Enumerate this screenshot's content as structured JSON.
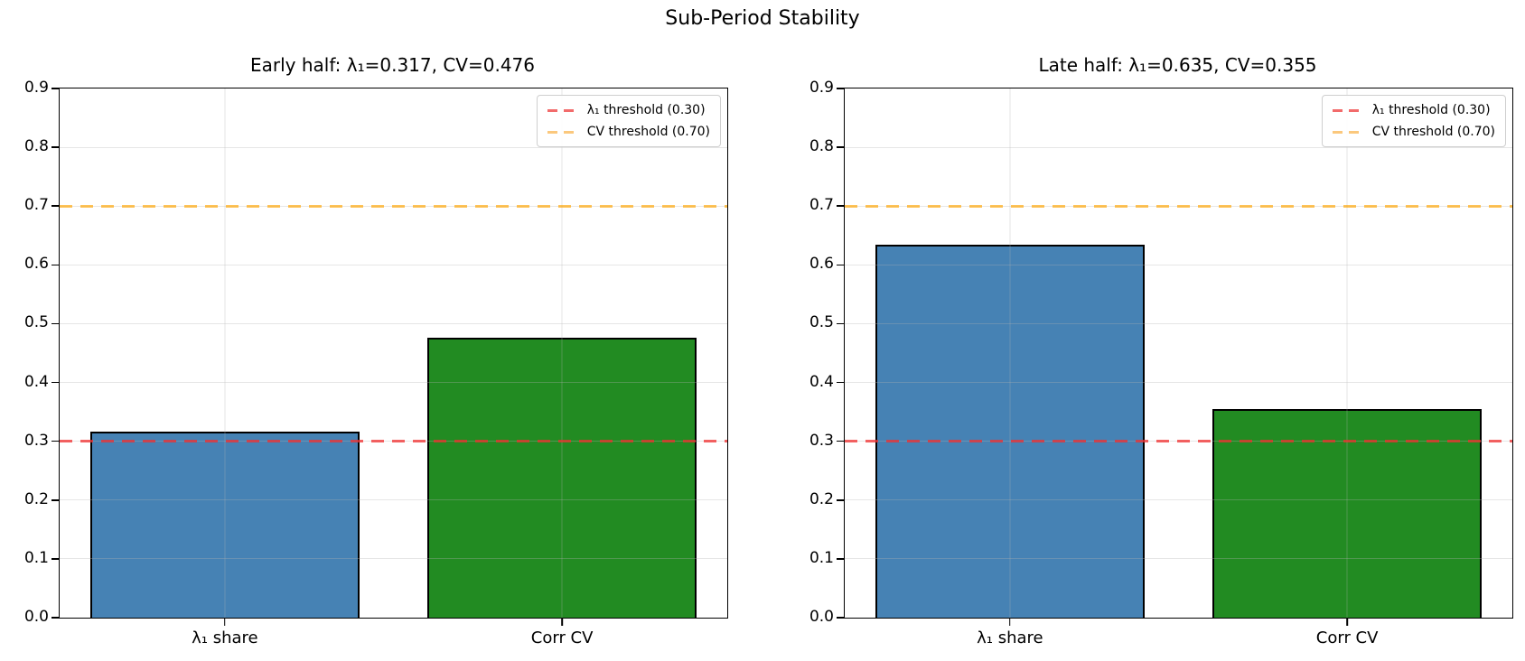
{
  "figure": {
    "suptitle": "Sub-Period Stability",
    "background": "#ffffff"
  },
  "chart_data": [
    {
      "type": "bar",
      "title": "Early half: λ₁=0.317, CV=0.476",
      "categories": [
        "λ₁ share",
        "Corr CV"
      ],
      "values": [
        0.317,
        0.476
      ],
      "bar_colors": [
        "#4682b4",
        "#228b22"
      ],
      "bar_edge_color": "#000000",
      "ylim": [
        0,
        0.9
      ],
      "yticks": [
        0.0,
        0.1,
        0.2,
        0.3,
        0.4,
        0.5,
        0.6,
        0.7,
        0.8,
        0.9
      ],
      "grid": true,
      "legend_position": "upper right",
      "thresholds": [
        {
          "label": "λ₁ threshold (0.30)",
          "value": 0.3,
          "line_color": "rgba(240,45,45,0.75)",
          "legend_color": "#f26b6b"
        },
        {
          "label": "CV threshold (0.70)",
          "value": 0.7,
          "line_color": "rgba(255,165,0,0.65)",
          "legend_color": "#fbc87d"
        }
      ]
    },
    {
      "type": "bar",
      "title": "Late half: λ₁=0.635, CV=0.355",
      "categories": [
        "λ₁ share",
        "Corr CV"
      ],
      "values": [
        0.635,
        0.355
      ],
      "bar_colors": [
        "#4682b4",
        "#228b22"
      ],
      "bar_edge_color": "#000000",
      "ylim": [
        0,
        0.9
      ],
      "yticks": [
        0.0,
        0.1,
        0.2,
        0.3,
        0.4,
        0.5,
        0.6,
        0.7,
        0.8,
        0.9
      ],
      "grid": true,
      "legend_position": "upper right",
      "thresholds": [
        {
          "label": "λ₁ threshold (0.30)",
          "value": 0.3,
          "line_color": "rgba(240,45,45,0.75)",
          "legend_color": "#f26b6b"
        },
        {
          "label": "CV threshold (0.70)",
          "value": 0.7,
          "line_color": "rgba(255,165,0,0.65)",
          "legend_color": "#fbc87d"
        }
      ]
    }
  ]
}
